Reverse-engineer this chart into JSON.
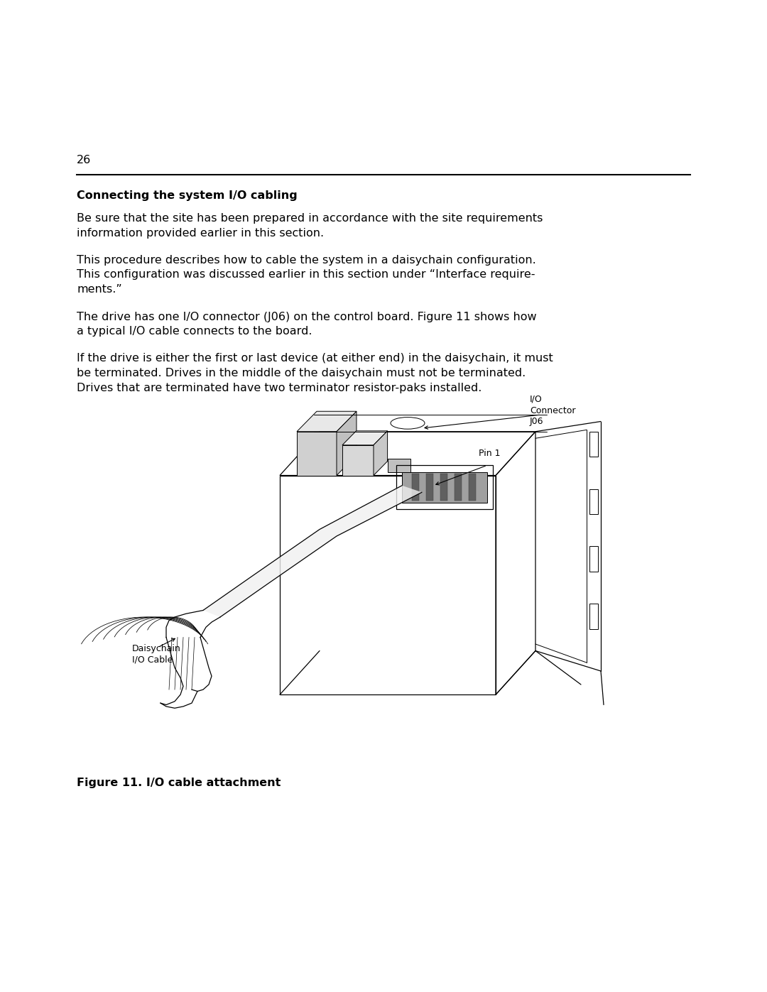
{
  "page_number": "26",
  "section_title": "Connecting the system I/O cabling",
  "paragraph1_line1": "Be sure that the site has been prepared in accordance with the site requirements",
  "paragraph1_line2": "information provided earlier in this section.",
  "paragraph2_line1": "This procedure describes how to cable the system in a daisychain configuration.",
  "paragraph2_line2": "This configuration was discussed earlier in this section under “Interface require-",
  "paragraph2_line3": "ments.”",
  "paragraph3_line1": "The drive has one I/O connector (J06) on the control board. Figure 11 shows how",
  "paragraph3_line2": "a typical I/O cable connects to the board.",
  "paragraph4_line1": "If the drive is either the first or last device (at either end) in the daisychain, it must",
  "paragraph4_line2": "be terminated. Drives in the middle of the daisychain must not be terminated.",
  "paragraph4_line3": "Drives that are terminated have two terminator resistor-paks installed.",
  "figure_caption": "Figure 11. I/O cable attachment",
  "label_io_connector": "I/O\nConnector\nJ06",
  "label_pin1": "Pin 1",
  "label_daisy": "Daisychain\nI/O Cable",
  "bg_color": "#ffffff",
  "text_color": "#000000"
}
